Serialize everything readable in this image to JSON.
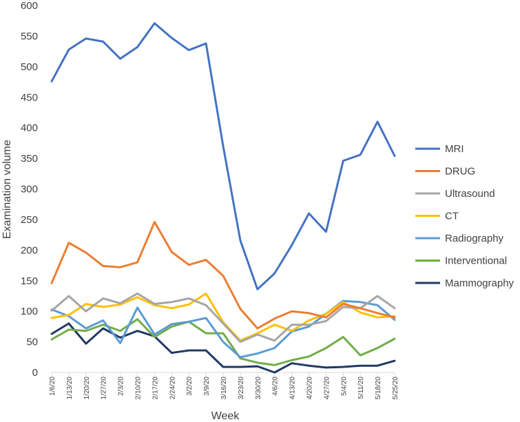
{
  "chart_data": {
    "type": "line",
    "title": "",
    "xlabel": "Week",
    "ylabel": "Examination volume",
    "ylim": [
      0,
      600
    ],
    "yticks": [
      0,
      50,
      100,
      150,
      200,
      250,
      300,
      350,
      400,
      450,
      500,
      550,
      600
    ],
    "grid": false,
    "legend_position": "right",
    "categories": [
      "1/6/20",
      "1/13/20",
      "1/20/20",
      "1/27/20",
      "2/3/20",
      "2/10/20",
      "2/17/20",
      "2/24/20",
      "3/2/20",
      "3/9/20",
      "3/16/20",
      "3/23/20",
      "3/30/20",
      "4/6/20",
      "4/13/20",
      "4/20/20",
      "4/27/20",
      "5/4/20",
      "5/11/20",
      "5/18/20",
      "5/25/20"
    ],
    "series": [
      {
        "name": "MRI",
        "color": "#4472C4",
        "values": [
          476,
          528,
          546,
          541,
          513,
          532,
          571,
          547,
          527,
          538,
          370,
          216,
          136,
          162,
          208,
          260,
          230,
          346,
          356,
          410,
          354
        ]
      },
      {
        "name": "DRUG",
        "color": "#ED7D31",
        "values": [
          146,
          212,
          196,
          174,
          172,
          180,
          246,
          197,
          176,
          184,
          158,
          104,
          72,
          88,
          100,
          97,
          90,
          112,
          105,
          97,
          90
        ]
      },
      {
        "name": "Ultrasound",
        "color": "#A5A5A5",
        "values": [
          101,
          125,
          100,
          121,
          113,
          129,
          112,
          115,
          121,
          110,
          80,
          50,
          62,
          52,
          78,
          78,
          84,
          107,
          105,
          125,
          105
        ]
      },
      {
        "name": "CT",
        "color": "#FFC000",
        "values": [
          89,
          94,
          112,
          107,
          111,
          123,
          110,
          105,
          111,
          129,
          82,
          52,
          64,
          78,
          68,
          85,
          96,
          115,
          98,
          90,
          92
        ]
      },
      {
        "name": "Radiography",
        "color": "#5B9BD5",
        "values": [
          103,
          92,
          72,
          85,
          48,
          106,
          62,
          79,
          83,
          89,
          50,
          25,
          31,
          40,
          67,
          75,
          96,
          117,
          115,
          110,
          86
        ]
      },
      {
        "name": "Interventional",
        "color": "#70AD47",
        "values": [
          54,
          70,
          68,
          78,
          68,
          87,
          58,
          75,
          83,
          64,
          64,
          23,
          16,
          12,
          20,
          26,
          40,
          58,
          28,
          40,
          55
        ]
      },
      {
        "name": "Mammography",
        "color": "#203864",
        "values": [
          63,
          80,
          47,
          72,
          57,
          68,
          59,
          32,
          36,
          36,
          9,
          9,
          10,
          0,
          15,
          11,
          8,
          9,
          11,
          11,
          19
        ]
      }
    ]
  }
}
